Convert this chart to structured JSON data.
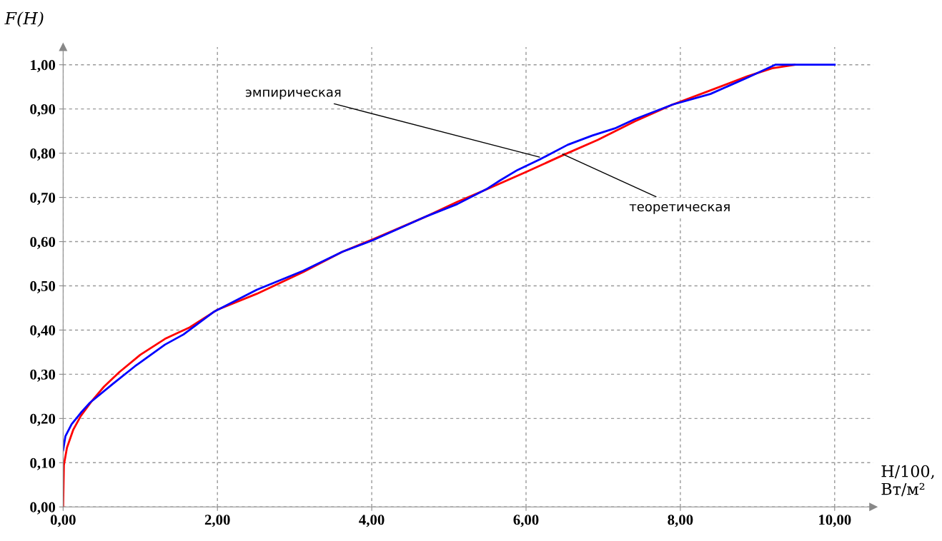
{
  "chart_data": {
    "type": "line",
    "xlabel": "H/100, Вт/м²",
    "ylabel": "F(H)",
    "xlim": [
      0,
      10.5
    ],
    "ylim": [
      0,
      1.04
    ],
    "xticks": [
      {
        "value": 0,
        "label": "0,00"
      },
      {
        "value": 2,
        "label": "2,00"
      },
      {
        "value": 4,
        "label": "4,00"
      },
      {
        "value": 6,
        "label": "6,00"
      },
      {
        "value": 8,
        "label": "8,00"
      },
      {
        "value": 10,
        "label": "10,00"
      }
    ],
    "yticks": [
      {
        "value": 0,
        "label": "0,00"
      },
      {
        "value": 0.1,
        "label": "0,10"
      },
      {
        "value": 0.2,
        "label": "0,20"
      },
      {
        "value": 0.3,
        "label": "0,30"
      },
      {
        "value": 0.4,
        "label": "0,40"
      },
      {
        "value": 0.5,
        "label": "0,50"
      },
      {
        "value": 0.6,
        "label": "0,60"
      },
      {
        "value": 0.7,
        "label": "0,70"
      },
      {
        "value": 0.8,
        "label": "0,80"
      },
      {
        "value": 0.9,
        "label": "0,90"
      },
      {
        "value": 1.0,
        "label": "1,00"
      }
    ],
    "grid": true,
    "marker": "none",
    "line_style": "solid",
    "legend": false,
    "series": [
      {
        "color": "#ff0000",
        "x": [
          0,
          0.01,
          0.05,
          0.13,
          0.23,
          0.37,
          0.53,
          0.73,
          1.0,
          1.32,
          1.64,
          2.0,
          2.51,
          3.11,
          3.62,
          4.01,
          4.72,
          5.11,
          5.5,
          6.02,
          6.51,
          6.93,
          7.41,
          7.9,
          8.39,
          8.87,
          9.19,
          9.48
        ],
        "values": [
          0,
          0.095,
          0.134,
          0.174,
          0.206,
          0.239,
          0.272,
          0.305,
          0.344,
          0.38,
          0.406,
          0.446,
          0.482,
          0.531,
          0.577,
          0.605,
          0.658,
          0.69,
          0.719,
          0.759,
          0.798,
          0.83,
          0.872,
          0.91,
          0.942,
          0.974,
          0.992,
          1.0
        ]
      },
      {
        "color": "#0000ff",
        "x": [
          0,
          0.03,
          0.11,
          0.23,
          0.35,
          0.65,
          0.93,
          1.32,
          1.56,
          1.96,
          2.51,
          3.11,
          3.62,
          4.01,
          4.72,
          5.11,
          5.5,
          5.66,
          5.89,
          6.18,
          6.54,
          6.86,
          7.15,
          7.41,
          7.9,
          8.39,
          8.87,
          9.23,
          10.0
        ],
        "values": [
          0.128,
          0.16,
          0.187,
          0.213,
          0.236,
          0.279,
          0.318,
          0.367,
          0.39,
          0.442,
          0.491,
          0.534,
          0.577,
          0.603,
          0.658,
          0.685,
          0.72,
          0.738,
          0.762,
          0.786,
          0.819,
          0.84,
          0.856,
          0.877,
          0.91,
          0.934,
          0.971,
          1.0,
          1.0
        ]
      }
    ],
    "annotations": [
      {
        "text": "эмпирическая",
        "x": 6.2,
        "y": 0.79
      },
      {
        "text": "теоретическая",
        "x": 6.45,
        "y": 0.8
      }
    ]
  }
}
